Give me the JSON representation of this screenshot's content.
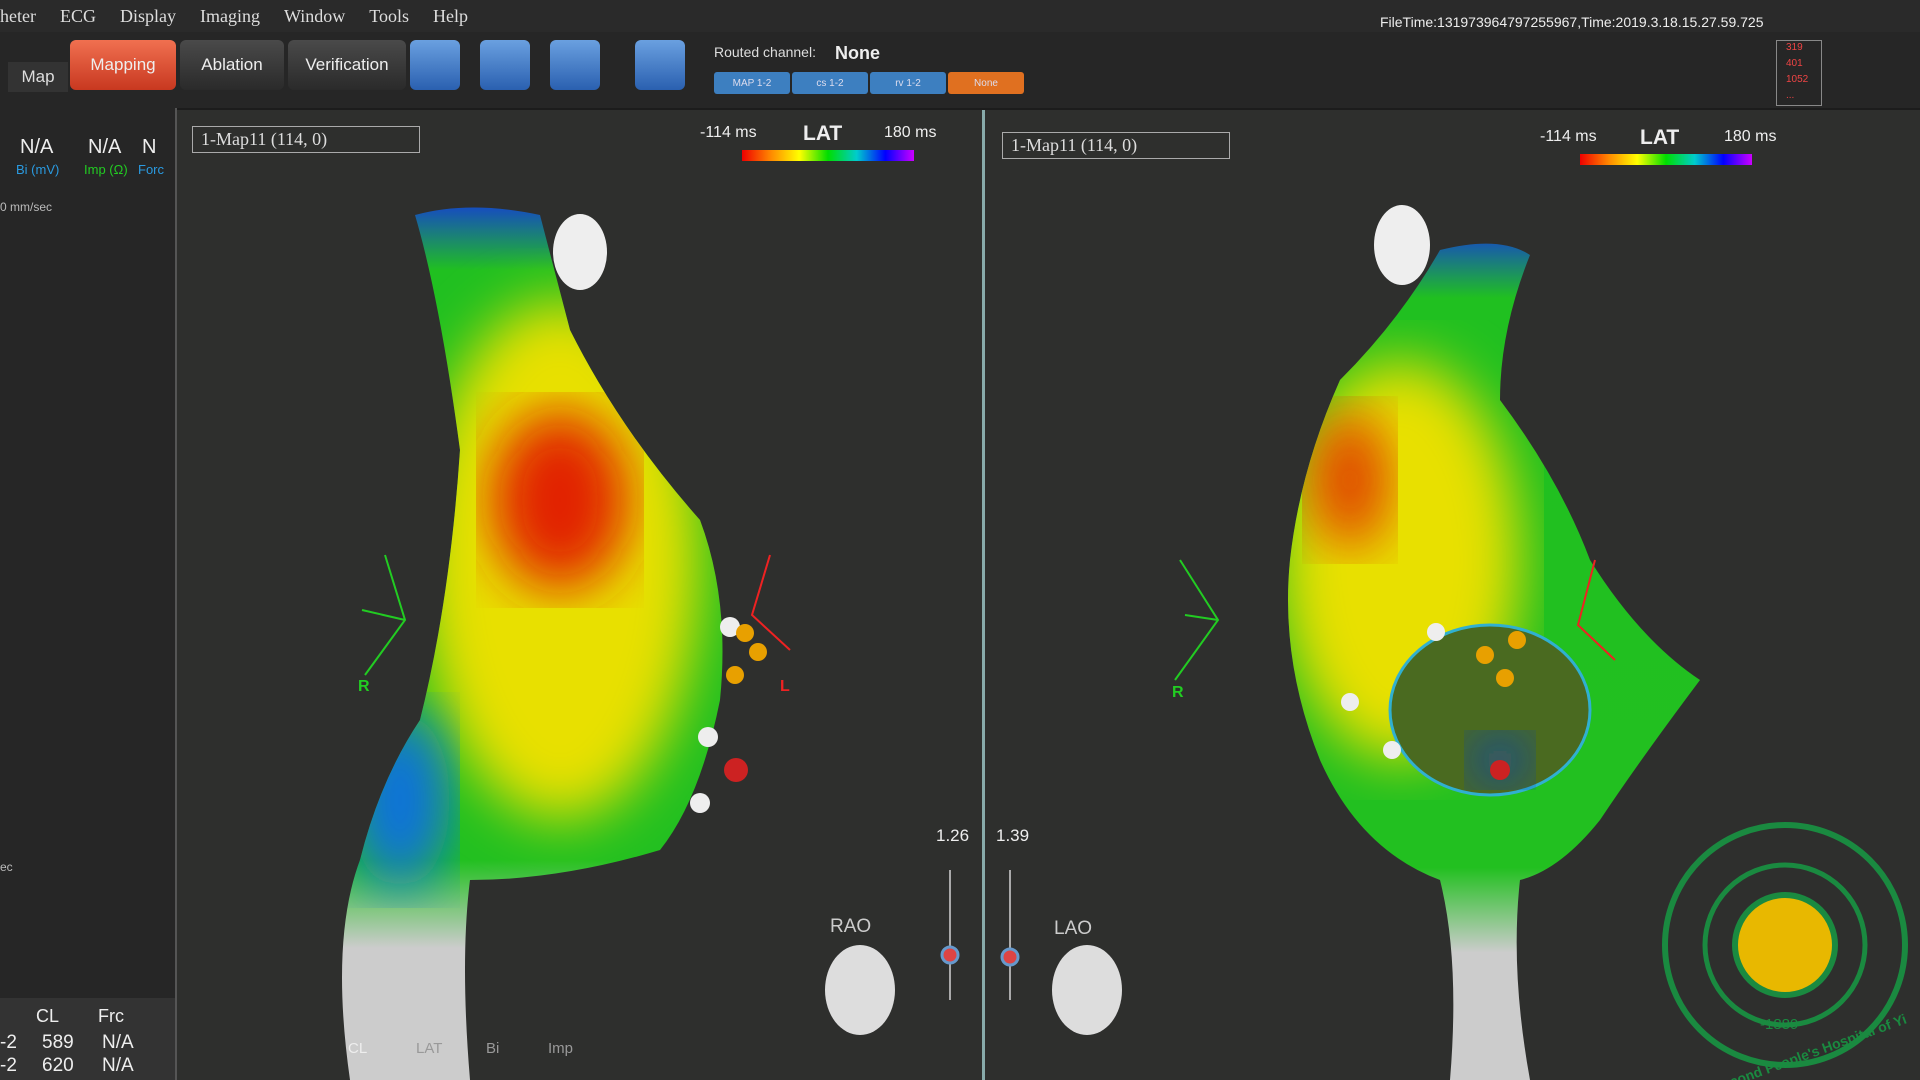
{
  "menu": [
    "heter",
    "ECG",
    "Display",
    "Imaging",
    "Window",
    "Tools",
    "Help"
  ],
  "toolbar": {
    "map_tab": "Map",
    "buttons": [
      "Mapping",
      "Ablation",
      "Verification"
    ],
    "routed_label": "Routed channel:",
    "routed_value": "None",
    "channels": [
      "MAP 1-2",
      "cs 1-2",
      "rv 1-2",
      "None"
    ],
    "file_time": "FileTime:131973964797255967,Time:2019.3.18.15.27.59.725",
    "status": [
      "319",
      "401",
      "1052",
      "..."
    ]
  },
  "left_panel": {
    "readouts": [
      {
        "value": "N/A",
        "label": "Bi (mV)"
      },
      {
        "value": "N/A",
        "label": "Imp (Ω)"
      },
      {
        "value": "N",
        "label": "Forc"
      }
    ],
    "speed": "0 mm/sec",
    "lower": "ec",
    "table": {
      "headers": [
        "CL",
        "Frc"
      ],
      "rows": [
        [
          "-2",
          "589",
          "N/A"
        ],
        [
          "-2",
          "620",
          "N/A"
        ]
      ]
    }
  },
  "viewports": [
    {
      "map": "1-Map11 (114, 0)",
      "min": "-114 ms",
      "metric": "LAT",
      "max": "180 ms",
      "right": "R",
      "left": "L",
      "zoom": "1.26",
      "view": "RAO"
    },
    {
      "map": "1-Map11 (114, 0)",
      "min": "-114 ms",
      "metric": "LAT",
      "max": "180 ms",
      "right": "R",
      "zoom": "1.39",
      "view": "LAO"
    }
  ],
  "bottom_tabs": [
    "CL",
    "LAT",
    "Bi",
    "Imp"
  ],
  "logo": {
    "year": "-1889-",
    "text": "The Second People's Hospital of Yi"
  }
}
